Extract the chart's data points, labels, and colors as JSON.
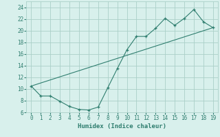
{
  "title": "",
  "xlabel": "Humidex (Indice chaleur)",
  "x": [
    0,
    1,
    2,
    3,
    4,
    5,
    6,
    7,
    8,
    9,
    10,
    11,
    12,
    13,
    14,
    15,
    16,
    17,
    18,
    19
  ],
  "y_curve": [
    10.5,
    8.8,
    8.8,
    7.9,
    7.0,
    6.5,
    6.4,
    6.9,
    10.2,
    13.5,
    16.7,
    19.0,
    19.0,
    20.4,
    22.1,
    20.9,
    22.1,
    23.6,
    21.5,
    20.5
  ],
  "line_color": "#2e7d6e",
  "bg_color": "#d8f0ec",
  "grid_color": "#aacfc8",
  "axis_color": "#2e7d6e",
  "ylim": [
    6,
    25
  ],
  "xlim": [
    -0.5,
    19.5
  ],
  "yticks": [
    6,
    8,
    10,
    12,
    14,
    16,
    18,
    20,
    22,
    24
  ],
  "xticks": [
    0,
    1,
    2,
    3,
    4,
    5,
    6,
    7,
    8,
    9,
    10,
    11,
    12,
    13,
    14,
    15,
    16,
    17,
    18,
    19
  ],
  "tick_fontsize": 5.5,
  "xlabel_fontsize": 6.5
}
